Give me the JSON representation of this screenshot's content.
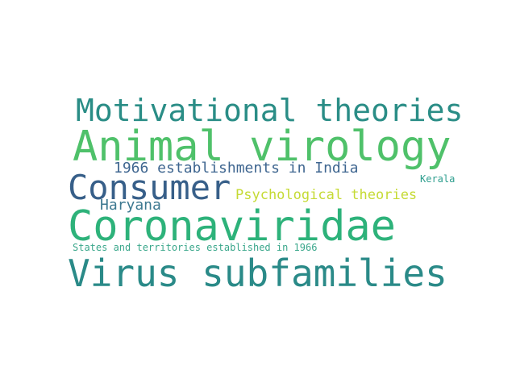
{
  "words": {
    "motivational_theories": {
      "text": "Motivational theories",
      "color": "#2a8d86"
    },
    "animal_virology": {
      "text": "Animal virology",
      "color": "#4fc16a"
    },
    "establishments_1966": {
      "text": "1966 establishments in India",
      "color": "#3f6690"
    },
    "consumer": {
      "text": "Consumer",
      "color": "#375f89"
    },
    "kerala": {
      "text": "Kerala",
      "color": "#2f9f8f"
    },
    "psychological_theories": {
      "text": "Psychological theories",
      "color": "#c5da34"
    },
    "haryana": {
      "text": "Haryana",
      "color": "#3c7890"
    },
    "coronaviridae": {
      "text": "Coronaviridae",
      "color": "#2db27a"
    },
    "states_territories_1966": {
      "text": "States and territories established in 1966",
      "color": "#3aa78b"
    },
    "virus_subfamilies": {
      "text": "Virus subfamilies",
      "color": "#2a8a88"
    }
  }
}
